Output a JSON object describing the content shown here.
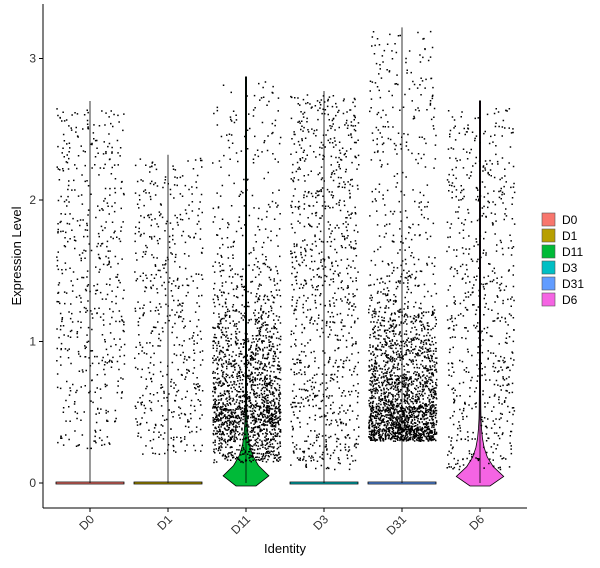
{
  "chart_data": {
    "type": "violin",
    "xlabel": "Identity",
    "ylabel": "Expression Level",
    "categories": [
      "D0",
      "D1",
      "D11",
      "D3",
      "D31",
      "D6"
    ],
    "ylim": [
      -0.18,
      3.25
    ],
    "yticks": [
      0,
      1,
      2,
      3
    ],
    "grid": false,
    "legend_position": "right",
    "legend": [
      {
        "label": "D0",
        "color": "#F8766D"
      },
      {
        "label": "D1",
        "color": "#B79F00"
      },
      {
        "label": "D11",
        "color": "#00BA38"
      },
      {
        "label": "D3",
        "color": "#00BFC4"
      },
      {
        "label": "D31",
        "color": "#619CFF"
      },
      {
        "label": "D6",
        "color": "#F564E3"
      }
    ],
    "series": [
      {
        "name": "D0",
        "max": 2.7,
        "nonzero_points": 520,
        "nonzero_range": [
          0.25,
          2.65
        ],
        "violin": "flat"
      },
      {
        "name": "D1",
        "max": 2.32,
        "nonzero_points": 520,
        "nonzero_range": [
          0.2,
          2.3
        ],
        "violin": "flat"
      },
      {
        "name": "D11",
        "max": 2.87,
        "nonzero_points": 1900,
        "nonzero_range": [
          0.15,
          2.85
        ],
        "violin": "wide",
        "mode": 0.05
      },
      {
        "name": "D3",
        "max": 2.77,
        "nonzero_points": 950,
        "nonzero_range": [
          0.1,
          2.75
        ],
        "violin": "flat"
      },
      {
        "name": "D31",
        "max": 3.22,
        "nonzero_points": 2300,
        "nonzero_range": [
          0.3,
          3.2
        ],
        "violin": "flat"
      },
      {
        "name": "D6",
        "max": 2.7,
        "nonzero_points": 650,
        "nonzero_range": [
          0.1,
          2.65
        ],
        "violin": "wide",
        "mode": 0.08
      }
    ],
    "zero_value": 0
  }
}
